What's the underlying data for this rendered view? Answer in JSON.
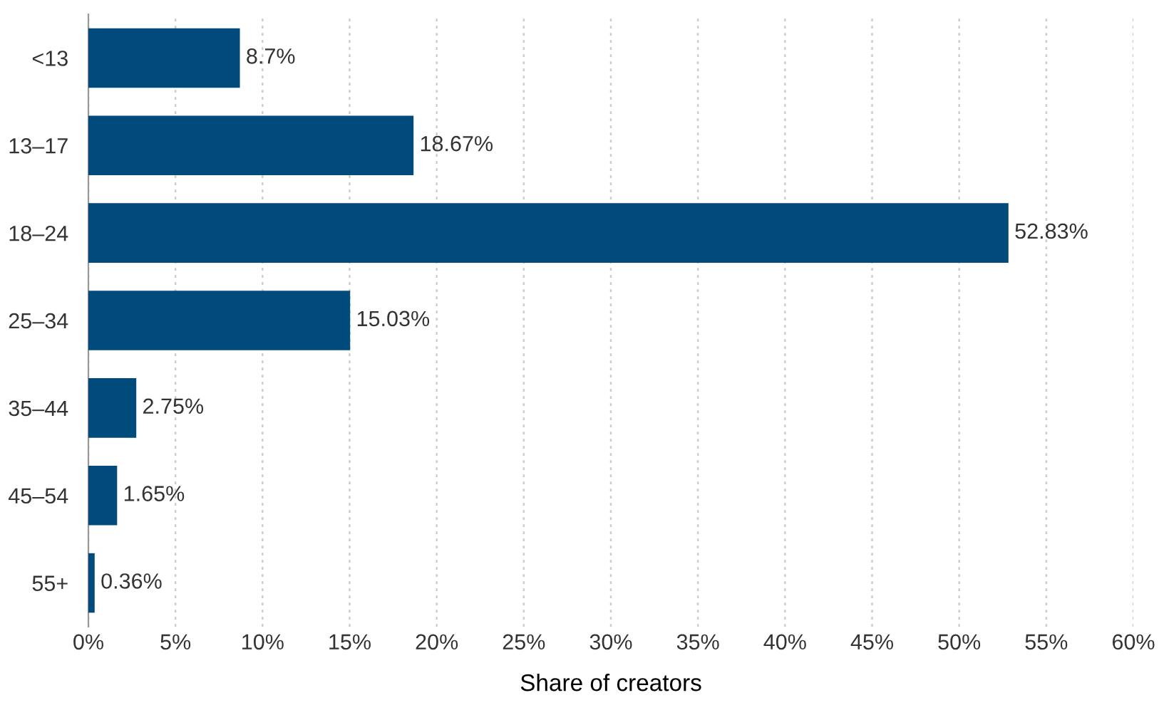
{
  "chart_data": {
    "type": "bar",
    "orientation": "horizontal",
    "xlabel": "Share of creators",
    "categories": [
      "<13",
      "13–17",
      "18–24",
      "25–34",
      "35–44",
      "45–54",
      "55+"
    ],
    "values": [
      8.7,
      18.67,
      52.83,
      15.03,
      2.75,
      1.65,
      0.36
    ],
    "value_labels": [
      "8.7%",
      "18.67%",
      "52.83%",
      "15.03%",
      "2.75%",
      "1.65%",
      "0.36%"
    ],
    "color": "#004b7c",
    "xlim": [
      0,
      60
    ],
    "xticks": [
      {
        "value": 0,
        "label": "0%"
      },
      {
        "value": 5,
        "label": "5%"
      },
      {
        "value": 10,
        "label": "10%"
      },
      {
        "value": 15,
        "label": "15%"
      },
      {
        "value": 20,
        "label": "20%"
      },
      {
        "value": 25,
        "label": "25%"
      },
      {
        "value": 30,
        "label": "30%"
      },
      {
        "value": 35,
        "label": "35%"
      },
      {
        "value": 40,
        "label": "40%"
      },
      {
        "value": 45,
        "label": "45%"
      },
      {
        "value": 50,
        "label": "50%"
      },
      {
        "value": 55,
        "label": "55%"
      },
      {
        "value": 60,
        "label": "60%"
      }
    ],
    "grid": "x",
    "legend": false
  }
}
